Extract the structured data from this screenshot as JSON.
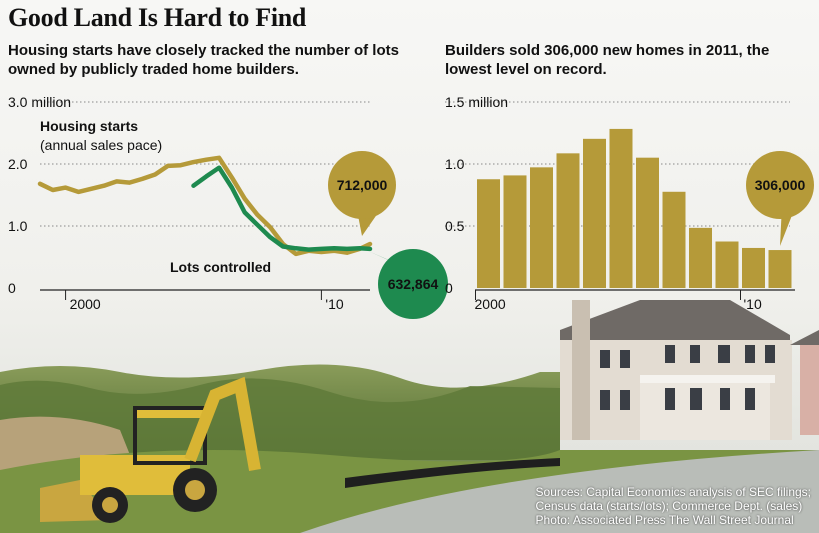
{
  "title": "Good Land Is Hard to Find",
  "colors": {
    "gold": "#b59a39",
    "green": "#1e8a4f",
    "gridline": "#888888"
  },
  "sources": [
    "Sources: Capital Economics analysis of SEC filings;",
    "Census data (starts/lots); Commerce Dept. (sales)",
    "Photo: Associated Press    The Wall Street Journal"
  ],
  "chart_data": [
    {
      "type": "line",
      "subtitle": "Housing starts have closely tracked the number of lots owned by publicly traded home builders.",
      "ylim": [
        0,
        3.0
      ],
      "y_ticks": [
        "3.0 million",
        "2.0",
        "1.0",
        "0"
      ],
      "y_tick_values": [
        3.0,
        2.0,
        1.0,
        0
      ],
      "x_ticks": [
        "2000",
        "'10"
      ],
      "x_tick_values": [
        2000,
        2010
      ],
      "xlim": [
        1999.0,
        2011.9
      ],
      "series": [
        {
          "name": "Housing starts (annual sales pace)",
          "label_line1": "Housing starts",
          "label_line2": "(annual sales pace)",
          "color": "#b59a39",
          "x": [
            1999.0,
            1999.5,
            2000.0,
            2000.5,
            2001.0,
            2001.5,
            2002.0,
            2002.5,
            2003.0,
            2003.5,
            2004.0,
            2004.5,
            2005.0,
            2005.5,
            2006.0,
            2006.5,
            2007.0,
            2007.5,
            2008.0,
            2008.5,
            2009.0,
            2009.5,
            2010.0,
            2010.5,
            2011.0,
            2011.5,
            2011.9
          ],
          "y": [
            1.68,
            1.58,
            1.62,
            1.55,
            1.6,
            1.65,
            1.72,
            1.7,
            1.76,
            1.83,
            1.97,
            1.98,
            2.03,
            2.07,
            2.1,
            1.78,
            1.44,
            1.18,
            0.98,
            0.71,
            0.55,
            0.6,
            0.58,
            0.6,
            0.57,
            0.63,
            0.71
          ]
        },
        {
          "name": "Lots controlled",
          "color": "#1e8a4f",
          "x": [
            2005.0,
            2005.5,
            2006.0,
            2006.5,
            2007.0,
            2007.5,
            2008.0,
            2008.5,
            2009.0,
            2009.5,
            2010.0,
            2010.5,
            2011.0,
            2011.5,
            2011.9
          ],
          "y": [
            1.65,
            1.8,
            1.94,
            1.62,
            1.22,
            1.02,
            0.82,
            0.67,
            0.64,
            0.62,
            0.63,
            0.64,
            0.63,
            0.64,
            0.63
          ]
        }
      ],
      "callouts": [
        {
          "label": "712,000",
          "series": "Housing starts (annual sales pace)"
        },
        {
          "label": "632,864",
          "series": "Lots controlled"
        }
      ]
    },
    {
      "type": "bar",
      "subtitle": "Builders sold 306,000 new homes in 2011, the lowest level on record.",
      "ylim": [
        0,
        1.5
      ],
      "y_ticks": [
        "1.5 million",
        "1.0",
        "0.5",
        "0"
      ],
      "y_tick_values": [
        1.5,
        1.0,
        0.5,
        0
      ],
      "x_ticks": [
        "2000",
        "'10"
      ],
      "categories": [
        "2000",
        "2001",
        "2002",
        "2003",
        "2004",
        "2005",
        "2006",
        "2007",
        "2008",
        "2009",
        "2010",
        "2011"
      ],
      "values": [
        0.877,
        0.908,
        0.973,
        1.086,
        1.203,
        1.283,
        1.051,
        0.776,
        0.485,
        0.375,
        0.323,
        0.306
      ],
      "callout": "306,000"
    }
  ]
}
